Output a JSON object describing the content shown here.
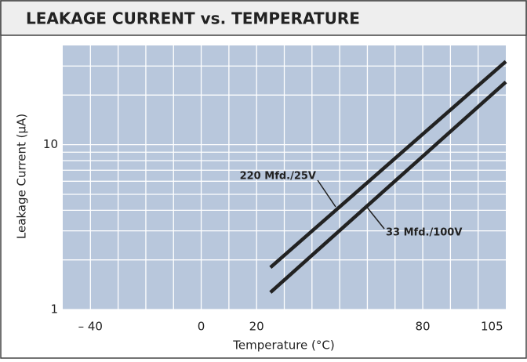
{
  "chart_data": {
    "type": "line",
    "title": "LEAKAGE CURRENT vs. TEMPERATURE",
    "x_label": "Temperature (°C)",
    "y_label": "Leakage Current (µA)",
    "xlim": [
      -50,
      110
    ],
    "xticks": [
      {
        "value": -40,
        "label": "– 40"
      },
      0,
      20,
      80,
      105
    ],
    "x_grid": [
      -40,
      -30,
      -20,
      -10,
      0,
      10,
      20,
      30,
      40,
      50,
      60,
      70,
      80,
      90,
      100
    ],
    "ylim": [
      1,
      40
    ],
    "yticks": [
      1,
      10
    ],
    "y_grid": [
      2,
      3,
      4,
      5,
      6,
      7,
      8,
      9,
      20,
      30
    ],
    "log_y": true,
    "grid": true,
    "series": [
      {
        "name": "220 Mfd./25V",
        "color": "#222222",
        "x": [
          25,
          110
        ],
        "values": [
          1.8,
          32
        ]
      },
      {
        "name": "33 Mfd./100V",
        "color": "#222222",
        "x": [
          25,
          110
        ],
        "values": [
          1.27,
          24
        ]
      }
    ]
  }
}
